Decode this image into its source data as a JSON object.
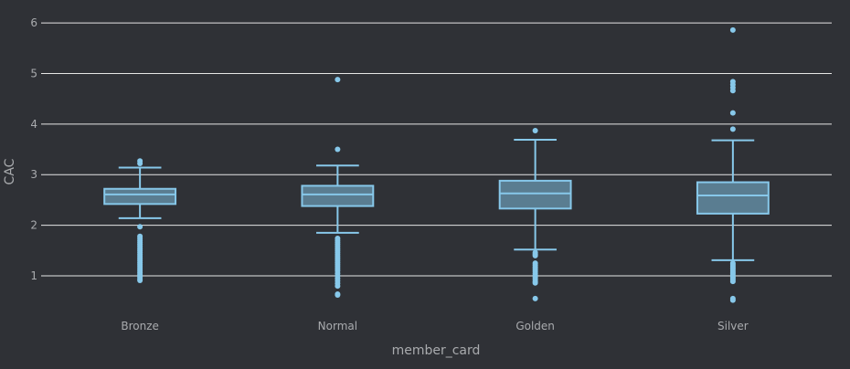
{
  "chart_data": {
    "type": "box",
    "xlabel": "member_card",
    "ylabel": "CAC",
    "ylim": [
      0.35,
      6.2
    ],
    "yticks": [
      1,
      2,
      3,
      4,
      5,
      6
    ],
    "grid": true,
    "colors": {
      "background": "#2f3136",
      "grid": "#e6e6e6",
      "box_stroke": "#87c8ea",
      "box_fill": "#5a7d91",
      "point": "#87c8ea",
      "text": "#a9abae"
    },
    "categories": [
      "Bronze",
      "Normal",
      "Golden",
      "Silver"
    ],
    "boxes": [
      {
        "category": "Bronze",
        "lower_whisker": 2.14,
        "q1": 2.42,
        "median": 2.61,
        "q3": 2.72,
        "upper_whisker": 3.14,
        "outliers": [
          3.27,
          3.22,
          1.97,
          1.78,
          1.74,
          1.7,
          1.66,
          1.62,
          1.58,
          1.54,
          1.5,
          1.46,
          1.42,
          1.38,
          1.34,
          1.3,
          1.26,
          1.22,
          1.18,
          1.14,
          1.1,
          1.06,
          1.02,
          0.98,
          0.94,
          0.91
        ]
      },
      {
        "category": "Normal",
        "lower_whisker": 1.85,
        "q1": 2.38,
        "median": 2.61,
        "q3": 2.78,
        "upper_whisker": 3.18,
        "outliers": [
          4.88,
          3.5,
          1.74,
          1.7,
          1.66,
          1.62,
          1.58,
          1.54,
          1.5,
          1.46,
          1.42,
          1.38,
          1.34,
          1.3,
          1.26,
          1.22,
          1.18,
          1.14,
          1.1,
          1.05,
          1.0,
          0.95,
          0.9,
          0.85,
          0.8,
          0.64,
          0.62
        ]
      },
      {
        "category": "Golden",
        "lower_whisker": 1.52,
        "q1": 2.33,
        "median": 2.63,
        "q3": 2.88,
        "upper_whisker": 3.69,
        "outliers": [
          3.87,
          1.46,
          1.43,
          1.4,
          1.25,
          1.21,
          1.17,
          1.13,
          1.09,
          1.05,
          1.01,
          0.97,
          0.93,
          0.89,
          0.86,
          0.55
        ]
      },
      {
        "category": "Silver",
        "lower_whisker": 1.31,
        "q1": 2.23,
        "median": 2.59,
        "q3": 2.85,
        "upper_whisker": 3.68,
        "outliers": [
          5.86,
          4.84,
          4.78,
          4.72,
          4.66,
          4.22,
          3.9,
          1.25,
          1.22,
          1.19,
          1.16,
          1.13,
          1.1,
          1.07,
          1.04,
          1.01,
          0.98,
          0.95,
          0.92,
          0.89,
          0.55,
          0.52
        ]
      }
    ]
  }
}
